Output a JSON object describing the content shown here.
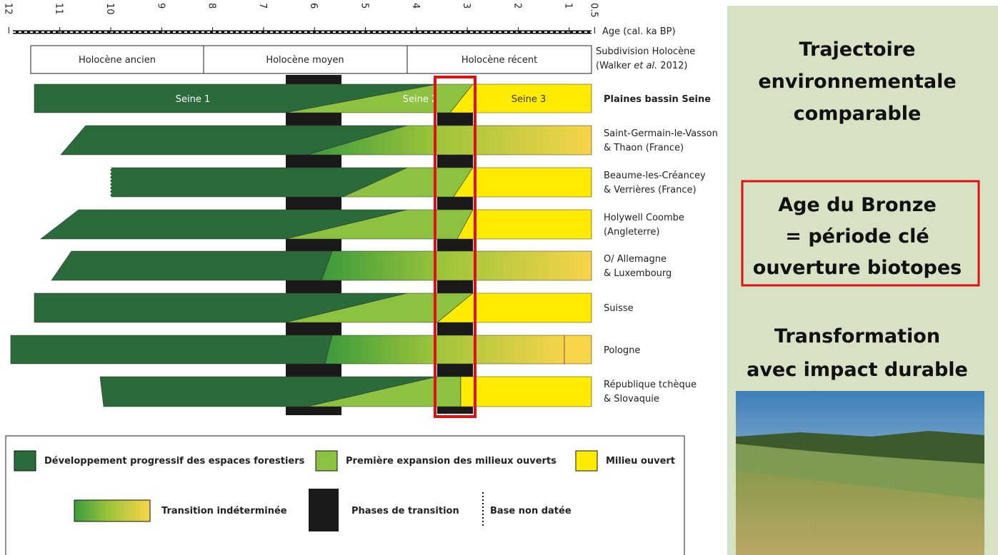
{
  "axis": {
    "label": "Age (cal. ka BP)",
    "ticks": [
      12,
      11,
      10,
      9,
      8,
      7,
      6,
      5,
      4,
      3,
      2,
      1,
      0.5
    ]
  },
  "subdivision": {
    "line1": "Subdivision Holocène",
    "line2_a": "(Walker ",
    "line2_em": "et al.",
    "line2_b": " 2012)",
    "periods": [
      "Holocène ancien",
      "Holocène moyen",
      "Holocène récent"
    ]
  },
  "phases": [
    "Seine 1",
    "Seine 2",
    "Seine 3"
  ],
  "rows": [
    [
      "Plaines bassin Seine"
    ],
    [
      "Saint-Germain-le-Vasson",
      "& Thaon (France)"
    ],
    [
      "Beaume-les-Créancey",
      "& Verrières (France)"
    ],
    [
      "Holywell Coombe",
      "(Angleterre)"
    ],
    [
      "O/ Allemagne",
      "& Luxembourg"
    ],
    [
      "Suisse"
    ],
    [
      "Pologne"
    ],
    [
      "République tchèque",
      "& Slovaquie"
    ]
  ],
  "legend": [
    "Développement progressif des espaces forestiers",
    "Première expansion des milieux ouverts",
    "Milieu ouvert",
    "Transition indéterminée",
    "Phases de transition",
    "Base non datée"
  ],
  "panel": {
    "title": [
      "Trajectoire",
      "environnementale",
      "comparable"
    ],
    "highlight": [
      "Age du Bronze",
      "= période clé",
      "ouverture biotopes"
    ],
    "impact": [
      "Transformation",
      "avec impact durable"
    ]
  }
}
